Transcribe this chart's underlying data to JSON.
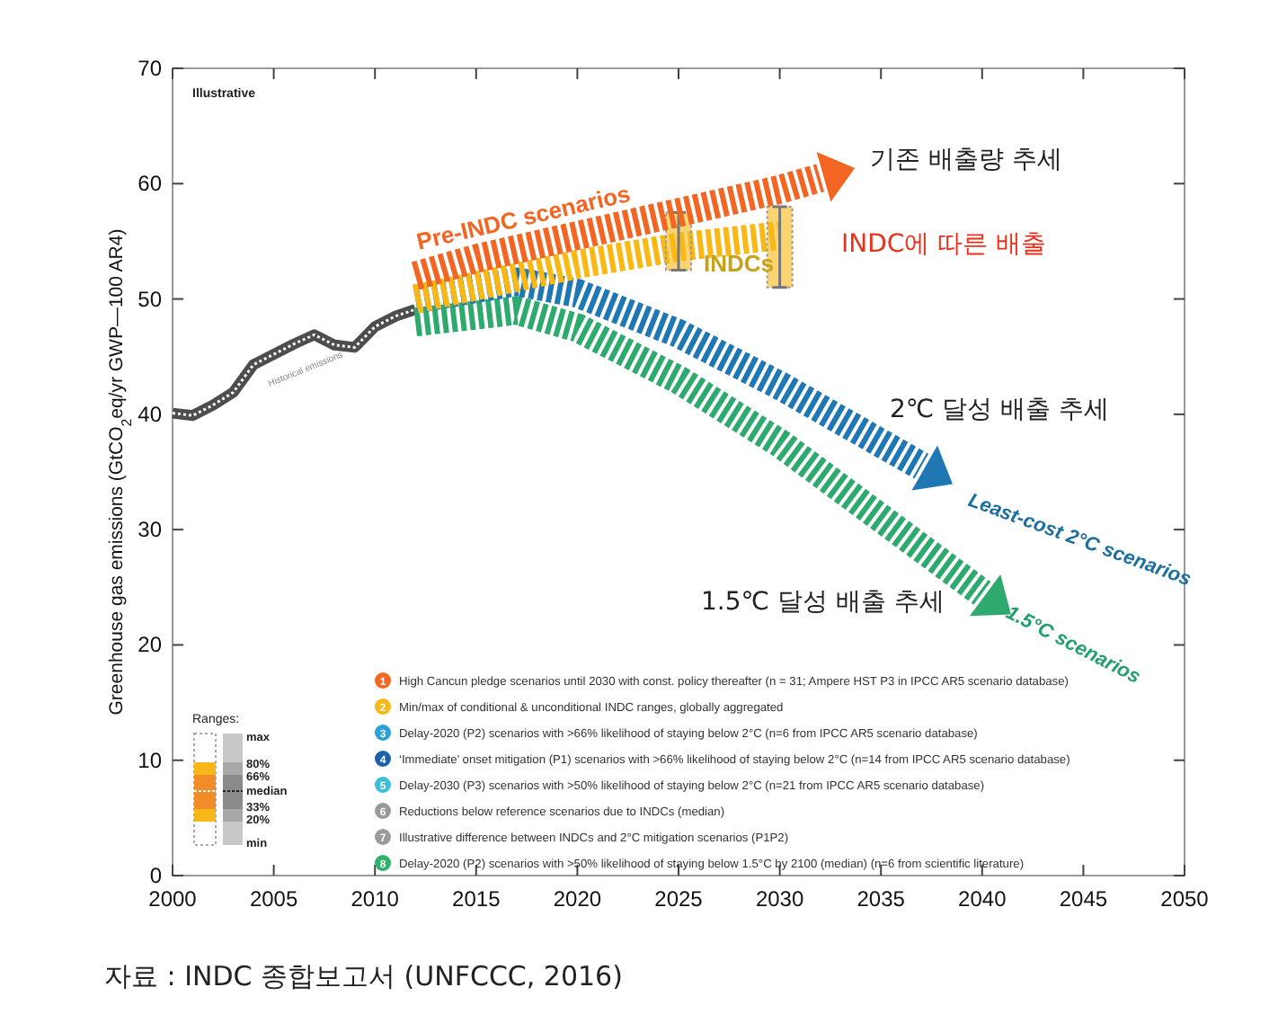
{
  "chart_data": {
    "type": "line",
    "ylabel": "Greenhouse gas emissions (GtCO$_{2}$eq/yr GWP—100 AR4)",
    "xlim": [
      2000,
      2050
    ],
    "xticks": [
      2000,
      2005,
      2010,
      2015,
      2020,
      2025,
      2030,
      2035,
      2040,
      2045,
      2050
    ],
    "ylim": [
      0,
      70
    ],
    "yticks": [
      0,
      10,
      20,
      30,
      40,
      50,
      60,
      70
    ],
    "grid": false,
    "marker": "none",
    "series": [
      {
        "color": "#4d4d4d",
        "line_style": "solid",
        "x": [
          2000,
          2001,
          2002,
          2003,
          2004,
          2005,
          2006,
          2007,
          2008,
          2009,
          2010,
          2011,
          2012
        ],
        "values": [
          40.1,
          39.9,
          40.8,
          41.9,
          44.3,
          45.2,
          46.1,
          46.9,
          46.0,
          45.8,
          47.6,
          48.5,
          49.1
        ]
      },
      {
        "color": "#2eaa6e",
        "line_style": "dashed",
        "x": [
          2012,
          2017,
          2020,
          2025,
          2030,
          2035,
          2040
        ],
        "values": [
          48,
          49,
          47.5,
          43,
          37.5,
          31,
          24.5
        ]
      },
      {
        "color": "#1f78b4",
        "line_style": "dashed",
        "x": [
          2012,
          2017,
          2020,
          2025,
          2030,
          2035,
          2037
        ],
        "values": [
          50,
          51.5,
          50.5,
          47,
          42.5,
          37.5,
          35.5
        ]
      },
      {
        "color": "#f9b814",
        "line_style": "dashed",
        "x": [
          2012,
          2020,
          2025,
          2030
        ],
        "values": [
          50,
          53,
          54.5,
          55.5
        ],
        "errors": [
          null,
          null,
          [
            52.5,
            57.5
          ],
          [
            51,
            58
          ]
        ]
      },
      {
        "color": "#f26522",
        "line_style": "dashed",
        "x": [
          2012,
          2015,
          2020,
          2025,
          2030,
          2032
        ],
        "values": [
          52,
          53.5,
          55.5,
          57.5,
          59.5,
          60.5
        ]
      }
    ],
    "annotations": [
      "Illustrative",
      "Historical emissions",
      "Pre-INDC scenarios",
      "INDCs",
      "Least-cost 2°C scenarios",
      "1.5°C scenarios",
      "기존 배출량 추세",
      "INDC에 따른 배출",
      "2℃ 달성 배출 추세",
      "1.5℃ 달성 배출 추세",
      "1 High Cancun pledge scenarios until 2030 with const. policy thereafter (n = 31; Ampere HST P3 in IPCC AR5 scenario database)",
      "2 Min/max of conditional & unconditional INDC ranges, globally aggregated",
      "3 Delay-2020 (P2) scenarios with >66% likelihood of staying below 2°C (n=6 from IPCC AR5 scenario database)",
      "4 ‘Immediate’ onset mitigation (P1) scenarios with >66% likelihood of staying below 2°C (n=14 from IPCC AR5 scenario database)",
      "5 Delay-2030 (P3) scenarios with >50% likelihood of staying below 2°C (n=21 from IPCC AR5 scenario database)",
      "6 Reductions below reference scenarios due to INDCs (median)",
      "7 Illustrative difference between INDCs and 2°C mitigation scenarios (P1P2)",
      "8 Delay-2020 (P2) scenarios with >50% likelihood of staying below 1.5°C by 2100 (median) (n=6 from scientific literature)",
      "Ranges:",
      "max",
      "80%",
      "66%",
      "median",
      "33%",
      "20%",
      "min",
      "자료 : INDC 종합보고서 (UNFCCC, 2016)"
    ]
  }
}
